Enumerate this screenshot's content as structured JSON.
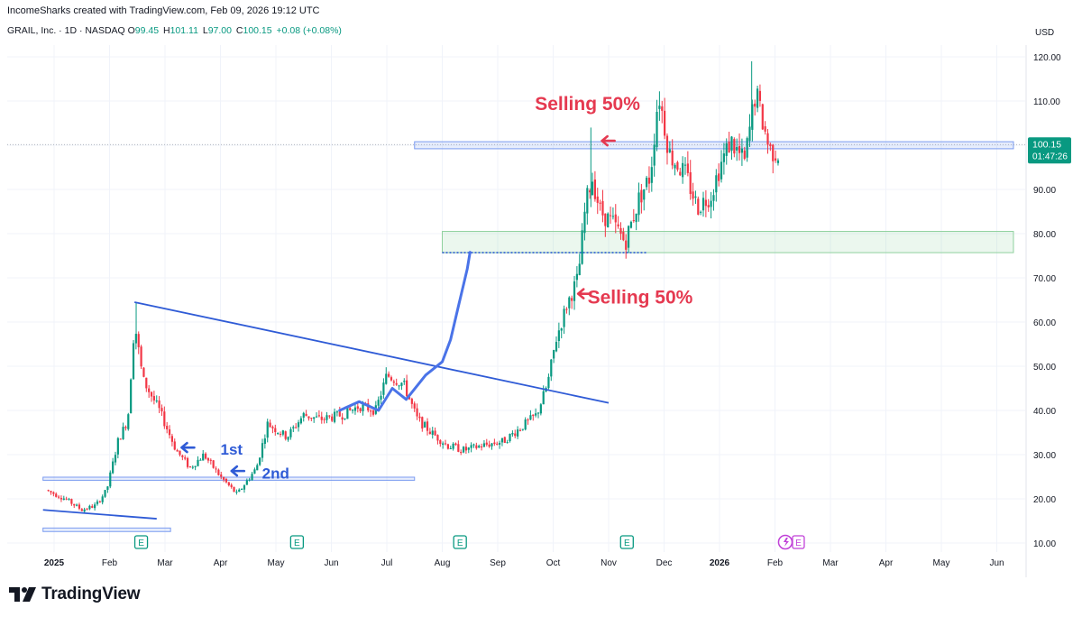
{
  "header": {
    "credit": "IncomeSharks created with TradingView.com, Feb 09, 2026 19:12 UTC",
    "symbol_line": "GRAIL, Inc. · 1D · NASDAQ",
    "ohlc": [
      {
        "key": "O",
        "value": "99.45"
      },
      {
        "key": "H",
        "value": "101.11"
      },
      {
        "key": "L",
        "value": "97.00"
      },
      {
        "key": "C",
        "value": "100.15"
      },
      {
        "key": "",
        "value": "+0.08 (+0.08%)"
      }
    ],
    "currency": "USD"
  },
  "footer": {
    "logo_text": "TradingView"
  },
  "chart_data": {
    "type": "candlestick",
    "y_axis": {
      "min": 10,
      "max": 120,
      "ticks": [
        "120.00",
        "110.00",
        "100.00",
        "90.00",
        "80.00",
        "70.00",
        "60.00",
        "50.00",
        "40.00",
        "30.00",
        "20.00",
        "10.00"
      ]
    },
    "x_axis": {
      "labels": [
        {
          "label": "2025",
          "month": 0,
          "bold": true
        },
        {
          "label": "Feb",
          "month": 1
        },
        {
          "label": "Mar",
          "month": 2
        },
        {
          "label": "Apr",
          "month": 3
        },
        {
          "label": "May",
          "month": 4
        },
        {
          "label": "Jun",
          "month": 5
        },
        {
          "label": "Jul",
          "month": 6
        },
        {
          "label": "Aug",
          "month": 7
        },
        {
          "label": "Sep",
          "month": 8
        },
        {
          "label": "Oct",
          "month": 9
        },
        {
          "label": "Nov",
          "month": 10
        },
        {
          "label": "Dec",
          "month": 11
        },
        {
          "label": "2026",
          "month": 12,
          "bold": true
        },
        {
          "label": "Feb",
          "month": 13
        },
        {
          "label": "Mar",
          "month": 14
        },
        {
          "label": "Apr",
          "month": 15
        },
        {
          "label": "May",
          "month": 16
        },
        {
          "label": "Jun",
          "month": 17
        }
      ]
    },
    "price_path": [
      [
        -0.15,
        22
      ],
      [
        0.2,
        20
      ],
      [
        0.5,
        17.5
      ],
      [
        0.75,
        18.5
      ],
      [
        0.95,
        22
      ],
      [
        1.15,
        33
      ],
      [
        1.33,
        38
      ],
      [
        1.45,
        60
      ],
      [
        1.6,
        47
      ],
      [
        1.9,
        40
      ],
      [
        2.2,
        31
      ],
      [
        2.45,
        27
      ],
      [
        2.7,
        30
      ],
      [
        3.0,
        25
      ],
      [
        3.3,
        21
      ],
      [
        3.65,
        27
      ],
      [
        3.85,
        37
      ],
      [
        4.2,
        34
      ],
      [
        4.5,
        39
      ],
      [
        4.8,
        38
      ],
      [
        5.2,
        39
      ],
      [
        5.5,
        41
      ],
      [
        5.8,
        40
      ],
      [
        6.0,
        48
      ],
      [
        6.3,
        46
      ],
      [
        6.55,
        38
      ],
      [
        6.8,
        35
      ],
      [
        7.1,
        32
      ],
      [
        7.4,
        31
      ],
      [
        7.7,
        32
      ],
      [
        8.1,
        33
      ],
      [
        8.4,
        36
      ],
      [
        8.7,
        39
      ],
      [
        8.9,
        46
      ],
      [
        9.05,
        56
      ],
      [
        9.25,
        64
      ],
      [
        9.45,
        70
      ],
      [
        9.58,
        86
      ],
      [
        9.7,
        93
      ],
      [
        9.85,
        85
      ],
      [
        10.1,
        82
      ],
      [
        10.3,
        78
      ],
      [
        10.55,
        88
      ],
      [
        10.75,
        93
      ],
      [
        10.9,
        112
      ],
      [
        11.1,
        98
      ],
      [
        11.4,
        93
      ],
      [
        11.6,
        86
      ],
      [
        11.85,
        89
      ],
      [
        12.0,
        95
      ],
      [
        12.2,
        101
      ],
      [
        12.45,
        96
      ],
      [
        12.65,
        112
      ],
      [
        12.9,
        99
      ],
      [
        13.1,
        98
      ]
    ],
    "last_price": {
      "value": "100.15",
      "countdown": "01:47:26"
    },
    "earnings_markers": [
      {
        "month": 1.57,
        "label": "E"
      },
      {
        "month": 4.38,
        "label": "E"
      },
      {
        "month": 7.32,
        "label": "E"
      },
      {
        "month": 10.33,
        "label": "E"
      },
      {
        "month": 13.3,
        "label": "E"
      }
    ],
    "zones": [
      {
        "name": "resistance",
        "from_month": 6.5,
        "to_month": 17.3,
        "low": 99.2,
        "high": 100.8,
        "color": "#7b9cf0"
      },
      {
        "name": "support",
        "from_month": 7.0,
        "to_month": 17.3,
        "low": 75.7,
        "high": 80.5,
        "color": "#8fd19e"
      },
      {
        "name": "base",
        "from_month": -0.2,
        "to_month": 6.5,
        "low": 24.2,
        "high": 24.9,
        "color": "#7b9cf0"
      },
      {
        "name": "floor",
        "from_month": -0.2,
        "to_month": 2.1,
        "low": 12.6,
        "high": 13.4,
        "color": "#7b9cf0"
      }
    ],
    "trendlines": [
      {
        "from": [
          1.45,
          64.5
        ],
        "to": [
          10.0,
          41.7
        ],
        "color": "#2f5bd6"
      },
      {
        "from": [
          -0.2,
          17.5
        ],
        "to": [
          1.85,
          15.5
        ],
        "color": "#2f5bd6"
      }
    ],
    "annotations": [
      {
        "text": "Selling 50%",
        "month": 8.67,
        "price": 108,
        "color": "#e53950",
        "size": 21
      },
      {
        "text": "Selling 50%",
        "month": 9.62,
        "price": 64.2,
        "color": "#e53950",
        "size": 21
      },
      {
        "text": "1st",
        "month": 3.0,
        "price": 30,
        "color": "#2f5bd6",
        "size": 17
      },
      {
        "text": "2nd",
        "month": 3.75,
        "price": 24.6,
        "color": "#2f5bd6",
        "size": 17
      }
    ],
    "up_color": "#089981",
    "down_color": "#f23645"
  }
}
